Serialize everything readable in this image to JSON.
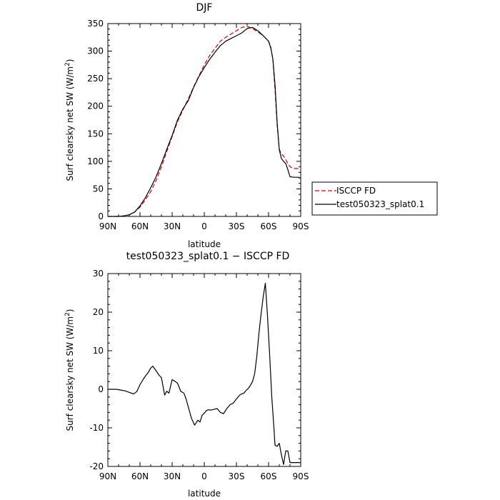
{
  "chart_data": [
    {
      "type": "line",
      "title": "DJF",
      "xlabel": "latitude",
      "ylabel": "Surf clearsky net SW (W/m²)",
      "xlim": [
        90,
        -90
      ],
      "ylim": [
        0,
        350
      ],
      "xticks": [
        90,
        60,
        30,
        0,
        -30,
        -60,
        -90
      ],
      "xticklabels": [
        "90N",
        "60N",
        "30N",
        "0",
        "30S",
        "60S",
        "90S"
      ],
      "yticks": [
        0,
        50,
        100,
        150,
        200,
        250,
        300,
        350
      ],
      "legend": {
        "placement": "right-outside",
        "entries": [
          "ISCCP FD",
          "test050323_splat0.1"
        ]
      },
      "series": [
        {
          "name": "ISCCP FD",
          "color": "#d40000",
          "dash": "dashed",
          "x": [
            90,
            80,
            75,
            70,
            65,
            60,
            55,
            50,
            45,
            40,
            35,
            30,
            25,
            20,
            15,
            10,
            5,
            0,
            -5,
            -10,
            -15,
            -20,
            -25,
            -30,
            -35,
            -40,
            -45,
            -50,
            -55,
            -60,
            -62,
            -64,
            -66,
            -68,
            -70,
            -72,
            -74,
            -76,
            -78,
            -80,
            -84,
            -88,
            -90
          ],
          "y": [
            0,
            0,
            1,
            3,
            8,
            17,
            30,
            45,
            65,
            90,
            118,
            145,
            172,
            193,
            213,
            235,
            255,
            275,
            292,
            305,
            318,
            325,
            331,
            337,
            343,
            345,
            341,
            335,
            328,
            318,
            308,
            285,
            230,
            165,
            122,
            113,
            110,
            103,
            96,
            90,
            87,
            87,
            87
          ]
        },
        {
          "name": "test050323_splat0.1",
          "color": "#000000",
          "dash": "solid",
          "x": [
            90,
            80,
            75,
            70,
            65,
            60,
            55,
            50,
            45,
            40,
            35,
            30,
            25,
            20,
            15,
            10,
            5,
            0,
            -5,
            -10,
            -15,
            -20,
            -25,
            -30,
            -35,
            -40,
            -45,
            -50,
            -55,
            -60,
            -62,
            -64,
            -66,
            -68,
            -70,
            -72,
            -74,
            -76,
            -78,
            -80,
            -84,
            -88,
            -90
          ],
          "y": [
            0,
            0,
            1,
            3,
            8,
            19,
            34,
            52,
            72,
            96,
            122,
            147,
            175,
            195,
            210,
            234,
            254,
            270,
            285,
            298,
            310,
            318,
            323,
            328,
            333,
            341,
            343,
            337,
            328,
            318,
            306,
            286,
            240,
            170,
            121,
            105,
            100,
            96,
            85,
            72,
            71,
            71,
            69
          ]
        }
      ]
    },
    {
      "type": "line",
      "title": "test050323_splat0.1 − ISCCP FD",
      "xlabel": "latitude",
      "ylabel": "Surf clearsky net SW (W/m²)",
      "xlim": [
        90,
        -90
      ],
      "ylim": [
        -20,
        30
      ],
      "xticks": [
        90,
        60,
        30,
        0,
        -30,
        -60,
        -90
      ],
      "xticklabels": [
        "90N",
        "60N",
        "30N",
        "0",
        "30S",
        "60S",
        "90S"
      ],
      "yticks": [
        -20,
        -10,
        0,
        10,
        20,
        30
      ],
      "series": [
        {
          "name": "",
          "color": "#000000",
          "dash": "solid",
          "x": [
            90,
            82,
            78,
            74,
            70,
            66,
            63,
            60,
            57,
            55,
            52,
            50,
            48,
            45,
            42,
            40,
            37,
            35,
            33,
            30,
            27,
            25,
            22,
            19,
            17,
            15,
            12,
            9,
            6,
            4,
            2,
            0,
            -2,
            -4,
            -6,
            -9,
            -12,
            -15,
            -18,
            -21,
            -24,
            -27,
            -30,
            -33,
            -35,
            -37,
            -39,
            -41,
            -43,
            -45,
            -47,
            -49,
            -51,
            -53,
            -55,
            -57,
            -59,
            -61,
            -63,
            -65,
            -66,
            -68,
            -70,
            -72,
            -74,
            -76,
            -78,
            -80,
            -82,
            -84,
            -86,
            -88,
            -90
          ],
          "y": [
            0,
            0,
            -0.2,
            -0.4,
            -0.8,
            -1.2,
            -0.6,
            1.2,
            2.6,
            3.4,
            4.5,
            5.5,
            6.0,
            4.8,
            3.6,
            3.0,
            -1.5,
            -0.5,
            -1.0,
            2.5,
            2.0,
            1.6,
            -0.5,
            -1.0,
            -2.5,
            -4.5,
            -7.5,
            -9.3,
            -8.0,
            -8.5,
            -6.7,
            -6.2,
            -5.5,
            -5.3,
            -5.4,
            -5.2,
            -5.0,
            -6.0,
            -6.3,
            -5.0,
            -4.0,
            -3.6,
            -2.5,
            -1.5,
            -1.2,
            -1.0,
            -0.3,
            0.2,
            1.0,
            2.0,
            4.0,
            8.5,
            14.5,
            19.5,
            24.0,
            27.5,
            19.0,
            9.0,
            -2.0,
            -10.0,
            -14.5,
            -14.8,
            -14.0,
            -17.0,
            -19.5,
            -16.0,
            -16.0,
            -19.0,
            -19.0,
            -19.0,
            -19.0,
            -19.0,
            -19.0
          ]
        }
      ]
    }
  ]
}
